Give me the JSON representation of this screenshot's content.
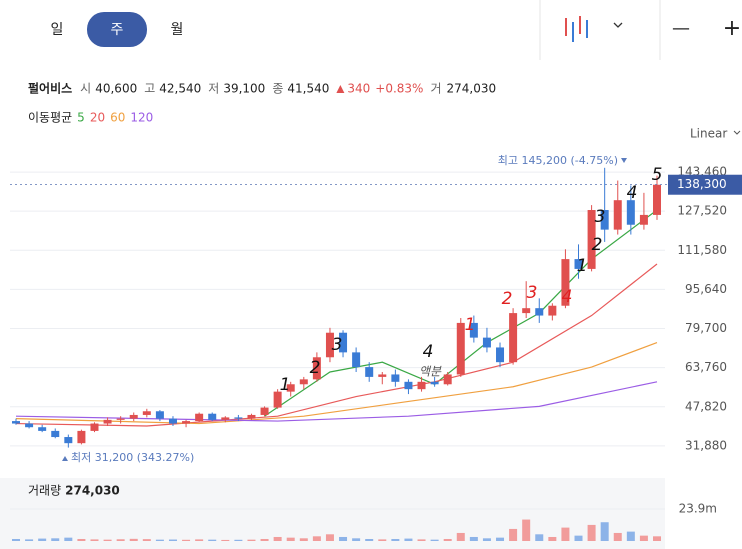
{
  "toolbar": {
    "tabs": [
      "일",
      "주",
      "월"
    ],
    "active_tab": 1,
    "zoom_out": "—",
    "zoom_in": "+"
  },
  "summary": {
    "name": "펄어비스",
    "items": [
      {
        "label": "시",
        "value": "40,600"
      },
      {
        "label": "고",
        "value": "42,540"
      },
      {
        "label": "저",
        "value": "39,100"
      },
      {
        "label": "종",
        "value": "41,540"
      }
    ],
    "change": "340",
    "change_pct": "+0.83%",
    "volume_label": "거",
    "volume": "274,030"
  },
  "chart_data": {
    "type": "candlestick",
    "scale": "Linear",
    "ma_label": "이동평균",
    "ylim": [
      22070,
      152450
    ],
    "yticks": [
      {
        "value": 31880,
        "label": "31,880"
      },
      {
        "value": 47820,
        "label": "47,820"
      },
      {
        "value": 63760,
        "label": "63,760"
      },
      {
        "value": 79700,
        "label": "79,700"
      },
      {
        "value": 95640,
        "label": "95,640"
      },
      {
        "value": 111580,
        "label": "111,580"
      },
      {
        "value": 127520,
        "label": "127,520"
      },
      {
        "value": 143460,
        "label": "143,460"
      }
    ],
    "grid": true,
    "up_color": "#e0504f",
    "down_color": "#3a7bd5",
    "open": [
      42000,
      41000,
      39500,
      38000,
      35500,
      33000,
      38000,
      41000,
      42500,
      43000,
      44500,
      46000,
      43000,
      41000,
      42000,
      45000,
      42500,
      43500,
      43000,
      44500,
      47500,
      54000,
      57000,
      59000,
      68000,
      78000,
      70000,
      64000,
      60000,
      61000,
      58000,
      55000,
      58000,
      57000,
      61000,
      82000,
      76000,
      72000,
      66000,
      86000,
      88000,
      85000,
      89000,
      108000,
      104000,
      128000,
      120000,
      132000,
      122000,
      126000
    ],
    "high": [
      43000,
      42000,
      40500,
      39000,
      36500,
      38500,
      41500,
      43500,
      44000,
      45500,
      47000,
      46500,
      44000,
      42500,
      45500,
      45500,
      44000,
      44500,
      45000,
      48000,
      55000,
      58000,
      60000,
      70000,
      80000,
      79000,
      72000,
      66000,
      62000,
      63000,
      59000,
      60000,
      60000,
      62000,
      84000,
      85000,
      80000,
      74000,
      88000,
      99000,
      92000,
      90000,
      112000,
      114000,
      130000,
      145200,
      140000,
      138000,
      135000,
      142000
    ],
    "low": [
      40500,
      39000,
      37500,
      35000,
      31200,
      32500,
      37500,
      40000,
      41000,
      42000,
      43500,
      42000,
      40000,
      39500,
      41500,
      42000,
      41500,
      42000,
      42500,
      44000,
      47000,
      52000,
      55000,
      58000,
      66000,
      68000,
      62000,
      58000,
      57000,
      56000,
      53000,
      54000,
      56000,
      56500,
      60000,
      74000,
      70000,
      64000,
      65000,
      84000,
      82000,
      83000,
      88000,
      100000,
      103000,
      115000,
      118000,
      118000,
      120000,
      124000
    ],
    "close": [
      41000,
      39500,
      38000,
      35500,
      33000,
      38000,
      41000,
      42500,
      43000,
      44500,
      46000,
      43000,
      41000,
      42000,
      45000,
      42500,
      43500,
      43000,
      44500,
      47500,
      54000,
      57000,
      59000,
      68000,
      78000,
      70000,
      64000,
      60000,
      61000,
      58000,
      55000,
      58000,
      57000,
      61000,
      82000,
      76000,
      72000,
      66000,
      86000,
      88000,
      85000,
      89000,
      108000,
      104000,
      128000,
      120000,
      132000,
      122000,
      126000,
      138300
    ],
    "last_price": {
      "value": 138300,
      "label": "138,300"
    },
    "max_label": "최고 145,200 (-4.75%)",
    "min_label": "최저 31,200 (343.27%)",
    "ma": [
      {
        "name": "5",
        "color": "#3aa845",
        "x": [
          19,
          24,
          28,
          32,
          36,
          40,
          44,
          48,
          49
        ],
        "values": [
          44000,
          62000,
          66000,
          57000,
          74000,
          86000,
          108000,
          124000,
          128000
        ]
      },
      {
        "name": "20",
        "color": "#e85a5a",
        "x": [
          0,
          10,
          20,
          26,
          32,
          38,
          44,
          49
        ],
        "values": [
          41000,
          40000,
          44000,
          52000,
          58000,
          66000,
          85000,
          106000
        ]
      },
      {
        "name": "60",
        "color": "#f0a040",
        "x": [
          0,
          14,
          22,
          30,
          38,
          44,
          49
        ],
        "values": [
          43000,
          41000,
          44000,
          50000,
          56000,
          64000,
          74000
        ]
      },
      {
        "name": "120",
        "color": "#9b5de5",
        "x": [
          0,
          20,
          30,
          40,
          49
        ],
        "values": [
          44000,
          42000,
          44000,
          48000,
          58000
        ]
      }
    ],
    "volume_title": "거래량",
    "volume_value": "274,030",
    "volume_ylim": [
      0,
      47000000
    ],
    "volume_yticks": [
      {
        "value": 23900000,
        "label": "23.9m"
      }
    ],
    "volume": [
      1500000,
      1200000,
      1800000,
      2000000,
      2500000,
      1500000,
      1200000,
      1000000,
      1300000,
      1600000,
      1400000,
      1000000,
      1100000,
      900000,
      1200000,
      1000000,
      800000,
      900000,
      1000000,
      1500000,
      3000000,
      2500000,
      2000000,
      3500000,
      5000000,
      3000000,
      2000000,
      1500000,
      1200000,
      1500000,
      1800000,
      1200000,
      1000000,
      1500000,
      6000000,
      3000000,
      2000000,
      2500000,
      9000000,
      16000000,
      5000000,
      3000000,
      10000000,
      4000000,
      12000000,
      14000000,
      6000000,
      7000000,
      4000000,
      3500000
    ],
    "annotations": [
      {
        "text": "1",
        "color": "#111"
      },
      {
        "text": "2",
        "color": "#111"
      },
      {
        "text": "3",
        "color": "#111"
      },
      {
        "text": "4",
        "color": "#111"
      },
      {
        "text": "액분",
        "color": "#555"
      },
      {
        "text": "1",
        "color": "#e02020"
      },
      {
        "text": "2",
        "color": "#e02020"
      },
      {
        "text": "3",
        "color": "#e02020"
      },
      {
        "text": "4",
        "color": "#e02020"
      },
      {
        "text": "1",
        "color": "#111"
      },
      {
        "text": "2",
        "color": "#111"
      },
      {
        "text": "3",
        "color": "#111"
      },
      {
        "text": "4",
        "color": "#111"
      },
      {
        "text": "5",
        "color": "#111"
      }
    ]
  }
}
